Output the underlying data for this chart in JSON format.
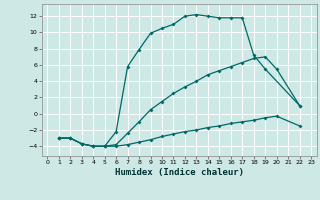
{
  "xlabel": "Humidex (Indice chaleur)",
  "bg_color": "#cde8e5",
  "grid_color": "#ffffff",
  "line_color": "#006868",
  "xlim": [
    -0.5,
    23.5
  ],
  "ylim": [
    -5.2,
    13.5
  ],
  "xticks": [
    0,
    1,
    2,
    3,
    4,
    5,
    6,
    7,
    8,
    9,
    10,
    11,
    12,
    13,
    14,
    15,
    16,
    17,
    18,
    19,
    20,
    21,
    22,
    23
  ],
  "yticks": [
    -4,
    -2,
    0,
    2,
    4,
    6,
    8,
    10,
    12
  ],
  "line1_x": [
    1,
    2,
    3,
    4,
    5,
    6,
    7,
    8,
    9,
    10,
    11,
    12,
    13,
    14,
    15,
    16,
    17,
    18,
    19,
    20,
    22
  ],
  "line1_y": [
    -3.0,
    -3.0,
    -3.7,
    -4.0,
    -4.0,
    -4.0,
    -3.8,
    -3.5,
    -3.2,
    -2.8,
    -2.5,
    -2.2,
    -2.0,
    -1.7,
    -1.5,
    -1.2,
    -1.0,
    -0.8,
    -0.5,
    -0.3,
    -1.5
  ],
  "line2_x": [
    1,
    2,
    3,
    4,
    5,
    6,
    7,
    8,
    9,
    10,
    11,
    12,
    13,
    14,
    15,
    16,
    17,
    18,
    19,
    22
  ],
  "line2_y": [
    -3.0,
    -3.0,
    -3.7,
    -4.0,
    -4.0,
    -2.2,
    5.8,
    7.9,
    9.9,
    10.5,
    11.0,
    12.0,
    12.2,
    12.0,
    11.8,
    11.8,
    11.8,
    7.2,
    5.5,
    1.0
  ],
  "line3_x": [
    1,
    2,
    3,
    4,
    5,
    6,
    7,
    8,
    9,
    10,
    11,
    12,
    13,
    14,
    15,
    16,
    17,
    18,
    19,
    20,
    22
  ],
  "line3_y": [
    -3.0,
    -3.0,
    -3.7,
    -4.0,
    -4.0,
    -3.8,
    -2.4,
    -1.0,
    0.5,
    1.5,
    2.5,
    3.3,
    4.0,
    4.8,
    5.3,
    5.8,
    6.3,
    6.8,
    7.0,
    5.5,
    1.0
  ]
}
